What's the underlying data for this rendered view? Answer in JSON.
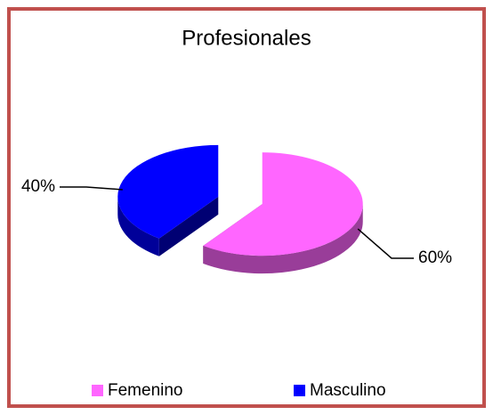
{
  "chart_data": {
    "type": "pie",
    "title": "Profesionales",
    "categories": [
      "Femenino",
      "Masculino"
    ],
    "values": [
      60,
      40
    ],
    "value_labels": [
      "60%",
      "40%"
    ],
    "colors": [
      "#ff66ff",
      "#0000ff"
    ],
    "legend": "bottom",
    "exploded": true
  }
}
